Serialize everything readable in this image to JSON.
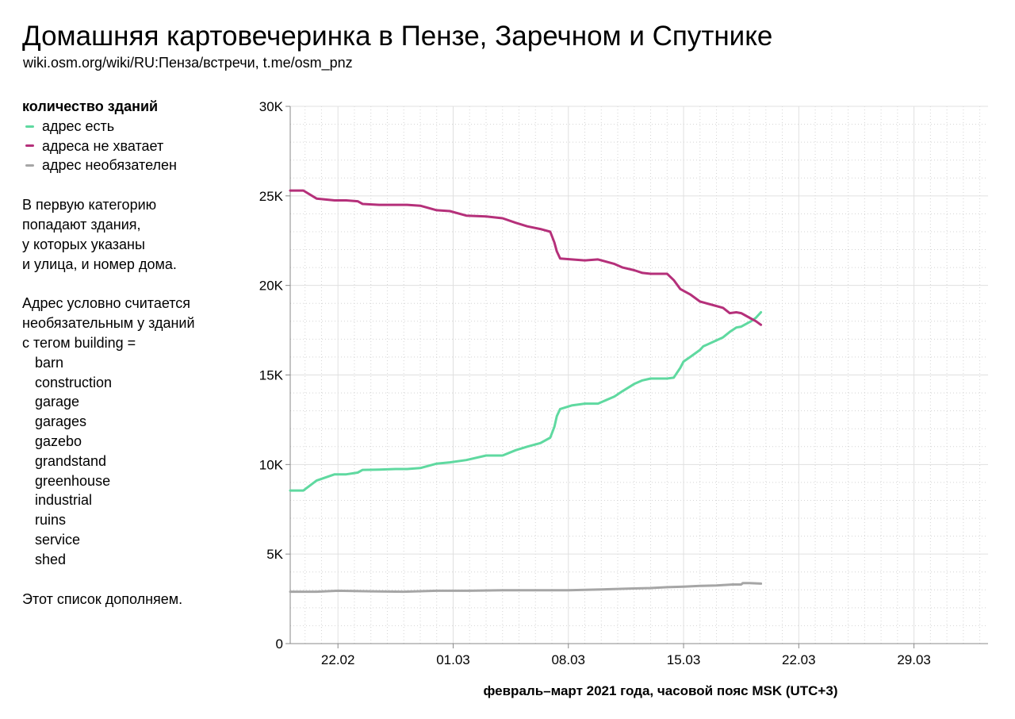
{
  "header": {
    "title": "Домашняя картовечеринка в Пензе, Заречном и Спутнике",
    "subtitle": "wiki.osm.org/wiki/RU:Пенза/встречи, t.me/osm_pnz"
  },
  "sidebar": {
    "legend_title": "количество зданий",
    "legend": [
      {
        "label": "адрес есть",
        "color": "#5fd9a0"
      },
      {
        "label": "адреса не хватает",
        "color": "#b5307a"
      },
      {
        "label": "адрес необязателен",
        "color": "#a6a6a6"
      }
    ],
    "note1": [
      "В первую категорию",
      "попадают здания,",
      "у которых указаны",
      "и улица, и номер дома."
    ],
    "note2": [
      "Адрес условно считается",
      "необязательным у зданий",
      "с тегом building ="
    ],
    "tags": [
      "barn",
      "construction",
      "garage",
      "garages",
      "gazebo",
      "grandstand",
      "greenhouse",
      "industrial",
      "ruins",
      "service",
      "shed"
    ],
    "note3": "Этот список дополняем."
  },
  "chart_data": {
    "type": "line",
    "title": "",
    "xlabel": "февраль–март 2021 года, часовой пояс MSK (UTC+3)",
    "ylabel": "",
    "xlim": [
      -2.9,
      39.5
    ],
    "ylim": [
      0,
      30000
    ],
    "x_tick_values": [
      0,
      7,
      14,
      21,
      28,
      35
    ],
    "x_tick_labels": [
      "22.02",
      "01.03",
      "08.03",
      "15.03",
      "22.03",
      "29.03"
    ],
    "y_tick_values": [
      0,
      5000,
      10000,
      15000,
      20000,
      25000,
      30000
    ],
    "y_tick_labels": [
      "0",
      "5K",
      "10K",
      "15K",
      "20K",
      "25K",
      "30K"
    ],
    "grid": true,
    "series": [
      {
        "name": "адрес есть",
        "color": "#5fd9a0",
        "points": [
          [
            -2.9,
            8550
          ],
          [
            -2.1,
            8550
          ],
          [
            -1.3,
            9100
          ],
          [
            -0.2,
            9450
          ],
          [
            0.5,
            9450
          ],
          [
            1.2,
            9550
          ],
          [
            1.5,
            9700
          ],
          [
            2.5,
            9720
          ],
          [
            3.5,
            9750
          ],
          [
            4.2,
            9750
          ],
          [
            5.0,
            9800
          ],
          [
            6.0,
            10050
          ],
          [
            6.8,
            10120
          ],
          [
            7.8,
            10250
          ],
          [
            9.0,
            10500
          ],
          [
            10.0,
            10500
          ],
          [
            10.8,
            10800
          ],
          [
            11.5,
            11000
          ],
          [
            12.3,
            11200
          ],
          [
            12.9,
            11500
          ],
          [
            13.15,
            12100
          ],
          [
            13.3,
            12700
          ],
          [
            13.5,
            13100
          ],
          [
            14.2,
            13300
          ],
          [
            15.0,
            13400
          ],
          [
            15.8,
            13400
          ],
          [
            16.8,
            13800
          ],
          [
            17.3,
            14100
          ],
          [
            18.0,
            14500
          ],
          [
            18.5,
            14700
          ],
          [
            19.0,
            14800
          ],
          [
            20.0,
            14800
          ],
          [
            20.4,
            14850
          ],
          [
            20.8,
            15400
          ],
          [
            21.0,
            15750
          ],
          [
            21.4,
            16000
          ],
          [
            22.0,
            16400
          ],
          [
            22.2,
            16600
          ],
          [
            22.8,
            16850
          ],
          [
            23.4,
            17100
          ],
          [
            23.8,
            17400
          ],
          [
            24.2,
            17650
          ],
          [
            24.5,
            17700
          ],
          [
            24.8,
            17850
          ],
          [
            25.1,
            18000
          ],
          [
            25.4,
            18200
          ],
          [
            25.7,
            18500
          ]
        ]
      },
      {
        "name": "адреса не хватает",
        "color": "#b5307a",
        "points": [
          [
            -2.9,
            25300
          ],
          [
            -2.1,
            25300
          ],
          [
            -1.3,
            24850
          ],
          [
            -0.2,
            24750
          ],
          [
            0.5,
            24750
          ],
          [
            1.2,
            24700
          ],
          [
            1.5,
            24550
          ],
          [
            2.5,
            24500
          ],
          [
            3.5,
            24500
          ],
          [
            4.2,
            24500
          ],
          [
            5.0,
            24450
          ],
          [
            6.0,
            24200
          ],
          [
            6.8,
            24150
          ],
          [
            7.8,
            23900
          ],
          [
            9.0,
            23850
          ],
          [
            10.0,
            23750
          ],
          [
            10.8,
            23500
          ],
          [
            11.5,
            23300
          ],
          [
            12.3,
            23150
          ],
          [
            12.9,
            23000
          ],
          [
            13.15,
            22400
          ],
          [
            13.3,
            21900
          ],
          [
            13.5,
            21500
          ],
          [
            14.2,
            21450
          ],
          [
            15.0,
            21400
          ],
          [
            15.8,
            21450
          ],
          [
            16.8,
            21200
          ],
          [
            17.3,
            21000
          ],
          [
            18.0,
            20850
          ],
          [
            18.5,
            20700
          ],
          [
            19.0,
            20650
          ],
          [
            20.0,
            20650
          ],
          [
            20.4,
            20300
          ],
          [
            20.8,
            19800
          ],
          [
            21.0,
            19700
          ],
          [
            21.4,
            19500
          ],
          [
            22.0,
            19100
          ],
          [
            22.2,
            19050
          ],
          [
            22.8,
            18900
          ],
          [
            23.4,
            18750
          ],
          [
            23.8,
            18450
          ],
          [
            24.2,
            18500
          ],
          [
            24.5,
            18450
          ],
          [
            24.8,
            18300
          ],
          [
            25.1,
            18150
          ],
          [
            25.4,
            18000
          ],
          [
            25.7,
            17800
          ]
        ]
      },
      {
        "name": "адрес необязателен",
        "color": "#a6a6a6",
        "points": [
          [
            -2.9,
            2900
          ],
          [
            -1.3,
            2900
          ],
          [
            0,
            2950
          ],
          [
            2.0,
            2920
          ],
          [
            4.0,
            2900
          ],
          [
            6.0,
            2950
          ],
          [
            8.0,
            2950
          ],
          [
            10.0,
            2980
          ],
          [
            12.0,
            2980
          ],
          [
            14.0,
            2980
          ],
          [
            16.0,
            3020
          ],
          [
            18.0,
            3080
          ],
          [
            19.0,
            3100
          ],
          [
            20.0,
            3150
          ],
          [
            21.0,
            3180
          ],
          [
            22.0,
            3220
          ],
          [
            23.0,
            3250
          ],
          [
            24.0,
            3300
          ],
          [
            24.5,
            3300
          ],
          [
            24.6,
            3380
          ],
          [
            25.0,
            3380
          ],
          [
            25.7,
            3350
          ]
        ]
      }
    ]
  }
}
